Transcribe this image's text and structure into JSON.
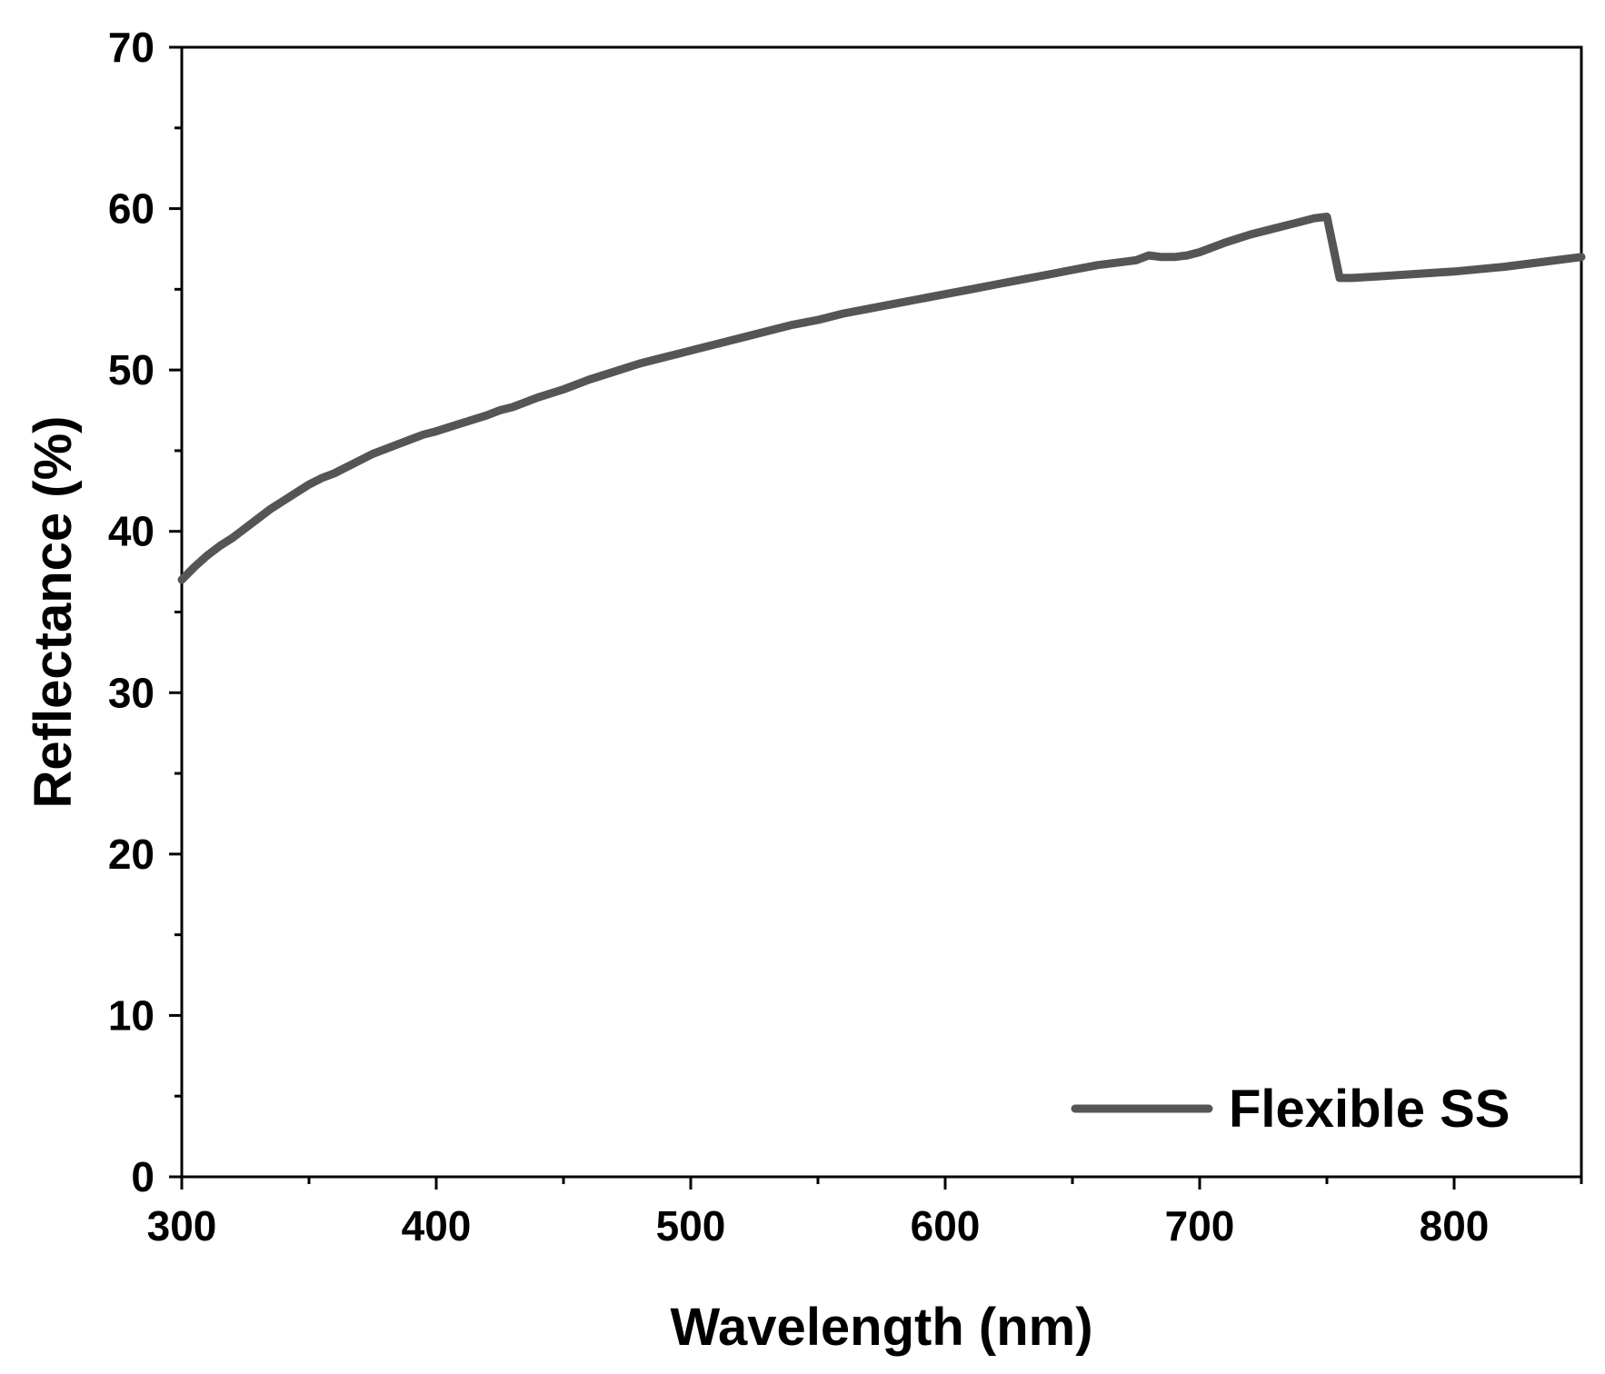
{
  "chart_data": {
    "type": "line",
    "title": "",
    "xlabel": "Wavelength (nm)",
    "ylabel": "Reflectance (%)",
    "xlim": [
      300,
      850
    ],
    "ylim": [
      0,
      70
    ],
    "x_ticks": [
      300,
      400,
      500,
      600,
      700,
      800
    ],
    "x_tick_labels": [
      "300",
      "400",
      "500",
      "600",
      "700",
      "800"
    ],
    "x_minor_ticks": [
      350,
      450,
      550,
      650,
      750,
      850
    ],
    "y_ticks": [
      0,
      10,
      20,
      30,
      40,
      50,
      60,
      70
    ],
    "y_tick_labels": [
      "0",
      "10",
      "20",
      "30",
      "40",
      "50",
      "60",
      "70"
    ],
    "y_minor_ticks": [
      5,
      15,
      25,
      35,
      45,
      55,
      65
    ],
    "grid": false,
    "legend_position": "bottom-right",
    "series": [
      {
        "name": "Flexible SS",
        "color": "#555555",
        "x": [
          300,
          305,
          310,
          315,
          320,
          325,
          330,
          335,
          340,
          345,
          350,
          355,
          360,
          365,
          370,
          375,
          380,
          385,
          390,
          395,
          400,
          410,
          420,
          425,
          430,
          440,
          450,
          460,
          470,
          480,
          490,
          500,
          510,
          520,
          530,
          540,
          550,
          560,
          570,
          580,
          590,
          600,
          610,
          620,
          630,
          640,
          650,
          660,
          670,
          675,
          680,
          685,
          690,
          695,
          700,
          710,
          720,
          730,
          740,
          745,
          750,
          755,
          760,
          780,
          800,
          820,
          840,
          850
        ],
        "y": [
          37.0,
          37.8,
          38.5,
          39.1,
          39.6,
          40.2,
          40.8,
          41.4,
          41.9,
          42.4,
          42.9,
          43.3,
          43.6,
          44.0,
          44.4,
          44.8,
          45.1,
          45.4,
          45.7,
          46.0,
          46.2,
          46.7,
          47.2,
          47.5,
          47.7,
          48.3,
          48.8,
          49.4,
          49.9,
          50.4,
          50.8,
          51.2,
          51.6,
          52.0,
          52.4,
          52.8,
          53.1,
          53.5,
          53.8,
          54.1,
          54.4,
          54.7,
          55.0,
          55.3,
          55.6,
          55.9,
          56.2,
          56.5,
          56.7,
          56.8,
          57.1,
          57.0,
          57.0,
          57.1,
          57.3,
          57.9,
          58.4,
          58.8,
          59.2,
          59.4,
          59.5,
          55.7,
          55.7,
          55.9,
          56.1,
          56.4,
          56.8,
          57.0
        ]
      }
    ]
  }
}
